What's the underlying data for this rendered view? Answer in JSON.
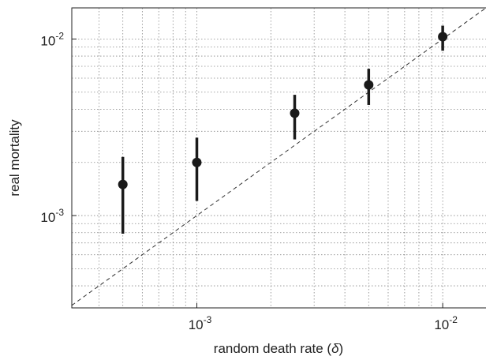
{
  "chart_data": {
    "type": "errorbar",
    "xlabel": "random death rate (",
    "xlabel_symbol": "δ",
    "xlabel_end": ")",
    "ylabel": "real mortality",
    "x": [
      0.0005,
      0.001,
      0.0025,
      0.005,
      0.01
    ],
    "series": [
      {
        "color": "#1a1a1a",
        "values": [
          0.0015,
          0.002,
          0.0038,
          0.0055,
          0.0103
        ],
        "lower": [
          0.00079,
          0.00121,
          0.0027,
          0.00423,
          0.00858
        ],
        "upper": [
          0.00215,
          0.00276,
          0.00483,
          0.00678,
          0.0119
        ]
      }
    ],
    "xlim": [
      0.00031,
      0.015
    ],
    "ylim": [
      0.0003,
      0.015
    ],
    "xticks": [
      {
        "value": 0.001,
        "label": "10",
        "exponent": "-3"
      },
      {
        "value": 0.01,
        "label": "10",
        "exponent": "-2"
      }
    ],
    "yticks": [
      {
        "value": 0.001,
        "label": "10",
        "exponent": "-3"
      },
      {
        "value": 0.01,
        "label": "10",
        "exponent": "-2"
      }
    ],
    "xscale": "log",
    "yscale": "log",
    "grid": true,
    "diagonal": true
  }
}
